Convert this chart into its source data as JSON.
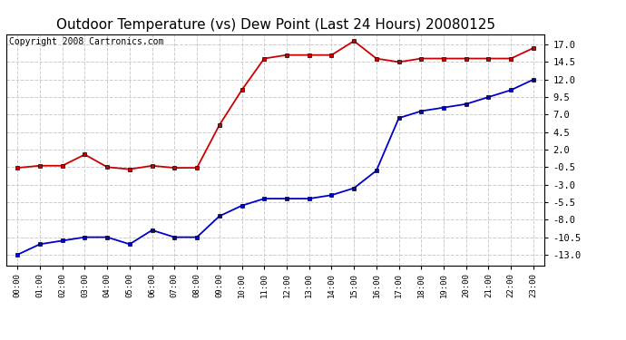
{
  "title": "Outdoor Temperature (vs) Dew Point (Last 24 Hours) 20080125",
  "copyright": "Copyright 2008 Cartronics.com",
  "hours": [
    "00:00",
    "01:00",
    "02:00",
    "03:00",
    "04:00",
    "05:00",
    "06:00",
    "07:00",
    "08:00",
    "09:00",
    "10:00",
    "11:00",
    "12:00",
    "13:00",
    "14:00",
    "15:00",
    "16:00",
    "17:00",
    "18:00",
    "19:00",
    "20:00",
    "21:00",
    "22:00",
    "23:00"
  ],
  "temp_red": [
    -0.6,
    -0.3,
    -0.3,
    1.3,
    -0.5,
    -0.8,
    -0.3,
    -0.6,
    -0.6,
    5.5,
    10.5,
    15.0,
    15.5,
    15.5,
    15.5,
    17.5,
    15.0,
    14.5,
    15.0,
    15.0,
    15.0,
    15.0,
    15.0,
    16.5
  ],
  "temp_blue": [
    -13.0,
    -11.5,
    -11.0,
    -10.5,
    -10.5,
    -11.5,
    -9.5,
    -10.5,
    -10.5,
    -7.5,
    -6.0,
    -5.0,
    -5.0,
    -5.0,
    -4.5,
    -3.5,
    -1.0,
    6.5,
    7.5,
    8.0,
    8.5,
    9.5,
    10.5,
    12.0
  ],
  "yticks": [
    17.0,
    14.5,
    12.0,
    9.5,
    7.0,
    4.5,
    2.0,
    -0.5,
    -3.0,
    -5.5,
    -8.0,
    -10.5,
    -13.0
  ],
  "ylim": [
    -14.5,
    18.5
  ],
  "background_color": "#ffffff",
  "plot_bg_color": "#ffffff",
  "grid_color": "#cccccc",
  "red_color": "#cc0000",
  "blue_color": "#0000cc",
  "title_fontsize": 11,
  "copyright_fontsize": 7
}
